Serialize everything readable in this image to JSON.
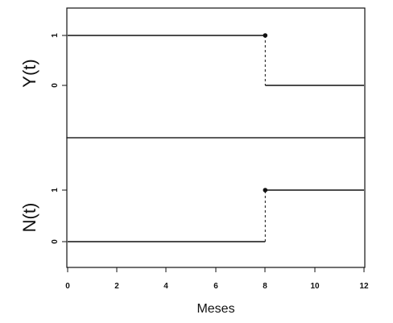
{
  "chart_data": [
    {
      "type": "line",
      "step": true,
      "ylabel": "Y(t)",
      "xlim": [
        0,
        12
      ],
      "ylim": [
        -0.55,
        1.55
      ],
      "yticks": [
        "0",
        "1"
      ],
      "segments": [
        {
          "x": [
            0,
            8
          ],
          "y": [
            1,
            1
          ],
          "style": "solid"
        },
        {
          "x": [
            8,
            8
          ],
          "y": [
            1,
            0
          ],
          "style": "dashed"
        },
        {
          "x": [
            8,
            12
          ],
          "y": [
            0,
            0
          ],
          "style": "solid"
        }
      ],
      "points": [
        {
          "x": 8,
          "y": 1
        }
      ]
    },
    {
      "type": "line",
      "step": true,
      "ylabel": "N(t)",
      "xlabel": "Meses",
      "xlim": [
        0,
        12
      ],
      "ylim": [
        -0.5,
        1.05
      ],
      "xticks": [
        "0",
        "2",
        "4",
        "6",
        "8",
        "10",
        "12"
      ],
      "yticks": [
        "0",
        "1"
      ],
      "segments": [
        {
          "x": [
            0,
            8
          ],
          "y": [
            0,
            0
          ],
          "style": "solid"
        },
        {
          "x": [
            8,
            8
          ],
          "y": [
            0,
            1
          ],
          "style": "dashed"
        },
        {
          "x": [
            8,
            12
          ],
          "y": [
            1,
            1
          ],
          "style": "solid"
        }
      ],
      "points": [
        {
          "x": 8,
          "y": 1
        }
      ]
    }
  ],
  "text": {
    "top_ylabel": "Y(t)",
    "bottom_ylabel": "N(t)",
    "xlabel": "Meses",
    "tick_0": "0",
    "tick_1": "1",
    "x0": "0",
    "x2": "2",
    "x4": "4",
    "x6": "6",
    "x8": "8",
    "x10": "10",
    "x12": "12"
  },
  "colors": {
    "ink": "#111111",
    "background": "#ffffff"
  }
}
